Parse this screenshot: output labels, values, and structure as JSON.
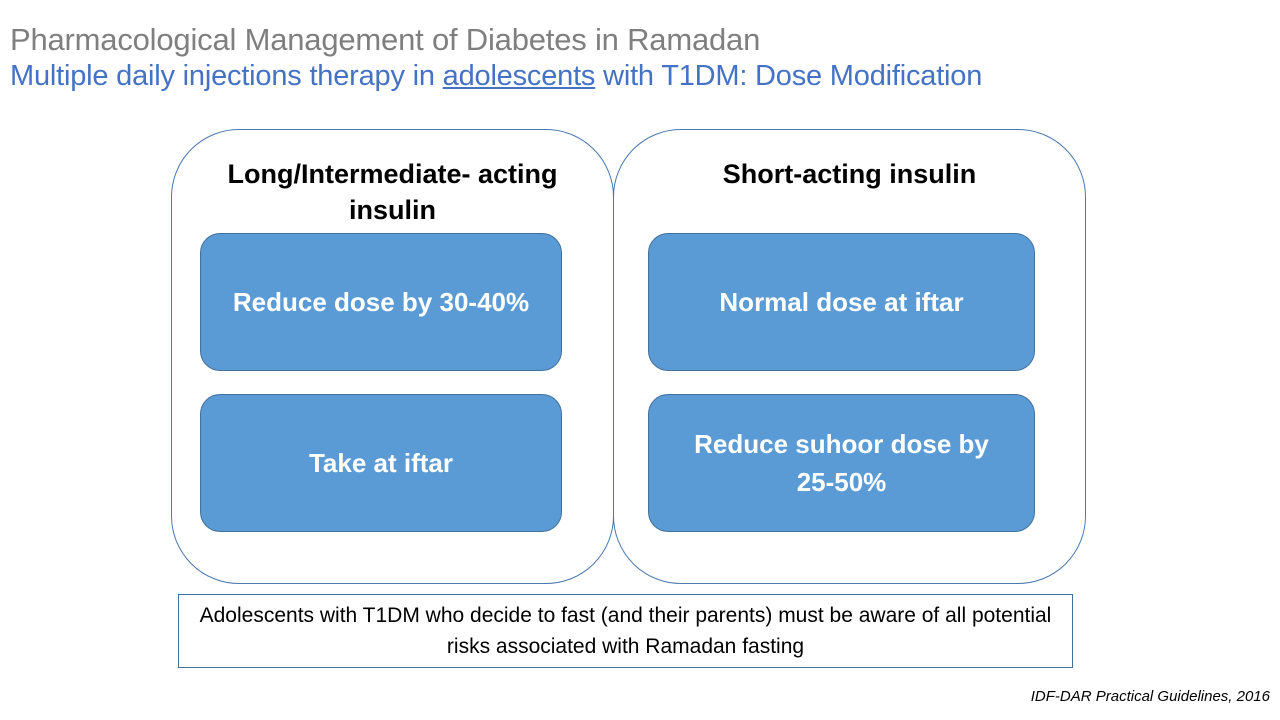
{
  "title": "Pharmacological Management of Diabetes in Ramadan",
  "subtitle": {
    "before": "Multiple daily injections therapy in ",
    "underlined": "adolescents",
    "after": " with T1DM: Dose Modification"
  },
  "left_panel": {
    "title": "Long/Intermediate- acting insulin",
    "boxes": [
      "Reduce dose by 30-40%",
      "Take at iftar"
    ]
  },
  "right_panel": {
    "title": "Short-acting insulin",
    "boxes": [
      "Normal dose at iftar",
      "Reduce suhoor dose by 25-50%"
    ]
  },
  "note": "Adolescents with T1DM who decide to fast (and their parents) must be aware of all potential risks associated with Ramadan fasting",
  "citation": "IDF-DAR Practical Guidelines, 2016",
  "colors": {
    "title": "#7f7f7f",
    "subtitle": "#4472c4",
    "box_fill": "#5b9bd5",
    "box_border": "#41719c",
    "panel_border": "#4a78b0"
  }
}
